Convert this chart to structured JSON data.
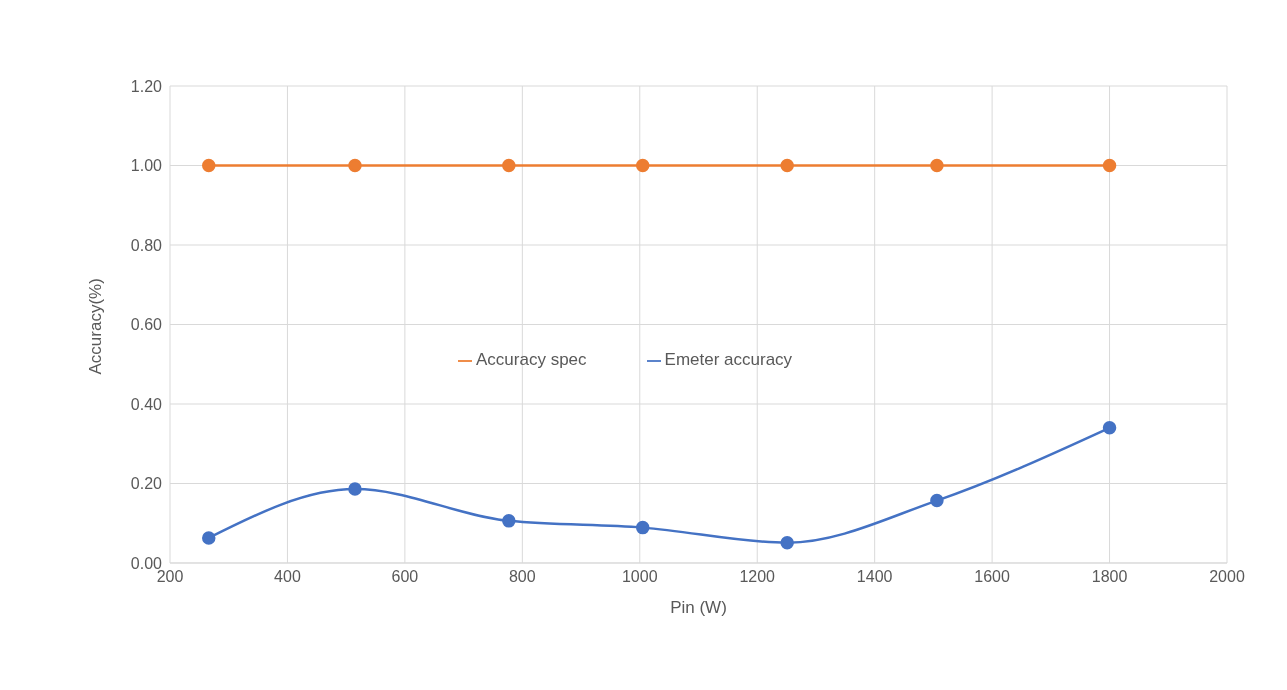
{
  "chart_data": {
    "type": "line",
    "xlabel": "Pin (W)",
    "ylabel": "Accuracy(%)",
    "xlim": [
      200,
      2000
    ],
    "xticks": [
      200,
      400,
      600,
      800,
      1000,
      1200,
      1400,
      1600,
      1800,
      2000
    ],
    "ylim": [
      0,
      1.2
    ],
    "yticks": [
      {
        "value": 0,
        "label": "0.00"
      },
      {
        "value": 0.2,
        "label": "0.20"
      },
      {
        "value": 0.4,
        "label": "0.40"
      },
      {
        "value": 0.6,
        "label": "0.60"
      },
      {
        "value": 0.8,
        "label": "0.80"
      },
      {
        "value": 1,
        "label": "1.00"
      },
      {
        "value": 1.2,
        "label": "1.20"
      }
    ],
    "x": [
      266,
      515,
      777,
      1005,
      1251,
      1506,
      1800
    ],
    "series": [
      {
        "name": "Emeter accuracy",
        "color": "#4472c4",
        "values": [
          0.063,
          0.186,
          0.106,
          0.089,
          0.051,
          0.157,
          0.34
        ]
      },
      {
        "name": "Accuracy spec",
        "color": "#ed7d31",
        "values": [
          1,
          1,
          1,
          1,
          1,
          1,
          1
        ]
      }
    ],
    "grid": true,
    "legend": "center",
    "marker": "circle",
    "line_style": "solid"
  }
}
